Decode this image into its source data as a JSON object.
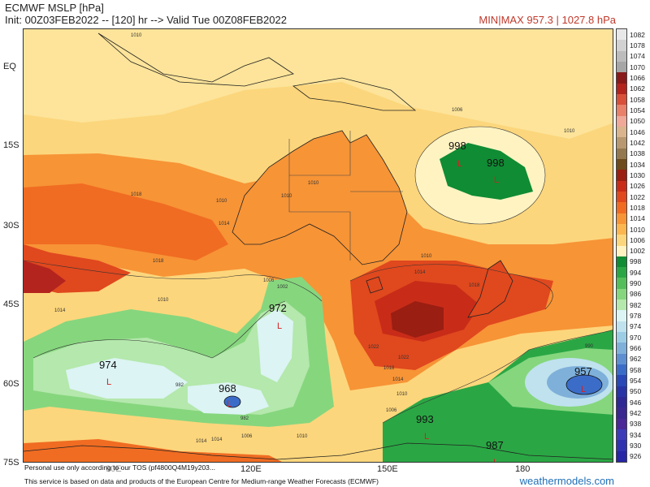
{
  "header": {
    "title": "ECMWF MSLP [hPa]",
    "init": "Init: 00Z03FEB2022 -- [120] hr --> Valid Tue 00Z08FEB2022",
    "minmax": "MIN|MAX 957.3 | 1027.8 hPa"
  },
  "lat_labels": [
    "EQ",
    "15S",
    "30S",
    "45S",
    "60S",
    "75S"
  ],
  "lon_labels": [
    "90E",
    "120E",
    "150E",
    "180"
  ],
  "pressure_centers": [
    {
      "value": "998",
      "letter": "L"
    },
    {
      "value": "998",
      "letter": "L"
    },
    {
      "value": "972",
      "letter": "L"
    },
    {
      "value": "974",
      "letter": "L"
    },
    {
      "value": "968",
      "letter": "L"
    },
    {
      "value": "957",
      "letter": "L"
    },
    {
      "value": "993",
      "letter": "L"
    },
    {
      "value": "987",
      "letter": "L"
    }
  ],
  "isobar_labels": [
    "1010",
    "1010",
    "1010",
    "1006",
    "1010",
    "1010",
    "1014",
    "1018",
    "1014",
    "1018",
    "1010",
    "1014",
    "1018",
    "1022",
    "1006",
    "1002",
    "1010",
    "1014",
    "1022",
    "1018",
    "1014",
    "1010",
    "1006",
    "990",
    "982",
    "982",
    "1014",
    "1006",
    "1010"
  ],
  "colorbar": {
    "labels": [
      "1082",
      "1078",
      "1074",
      "1070",
      "1066",
      "1062",
      "1058",
      "1054",
      "1050",
      "1046",
      "1042",
      "1038",
      "1034",
      "1030",
      "1026",
      "1022",
      "1018",
      "1014",
      "1010",
      "1006",
      "1002",
      "998",
      "994",
      "990",
      "986",
      "982",
      "978",
      "974",
      "970",
      "966",
      "962",
      "958",
      "954",
      "950",
      "946",
      "942",
      "938",
      "934",
      "930",
      "926"
    ],
    "colors": [
      "#e8e8e8",
      "#d2d2d2",
      "#bcbcbc",
      "#a6a6a6",
      "#8a1a1a",
      "#b3241e",
      "#d8503a",
      "#e8806a",
      "#f0a898",
      "#d9b48c",
      "#b89870",
      "#94784f",
      "#6e4a1c",
      "#9a1e12",
      "#c82c18",
      "#e0481e",
      "#f06c22",
      "#f79436",
      "#fcb650",
      "#fcd67c",
      "#fff3c2",
      "#0f8c34",
      "#2aa744",
      "#54bf5a",
      "#86d67e",
      "#b4e8ac",
      "#dcf4f4",
      "#bfe2ee",
      "#9dcde4",
      "#7fb0da",
      "#5e8fd0",
      "#3b6dc8",
      "#2a48b8",
      "#2834a6",
      "#2e2894",
      "#3a2890",
      "#4a2898",
      "#3c3cb8",
      "#2f33b0",
      "#2626a6"
    ]
  },
  "footer": {
    "personal": "Personal use only according to our TOS (pf4800Q4M19y203...",
    "source": "This service is based on data and products of the European Centre for Medium-range Weather Forecasts (ECMWF)",
    "site": "weathermodels.com"
  }
}
